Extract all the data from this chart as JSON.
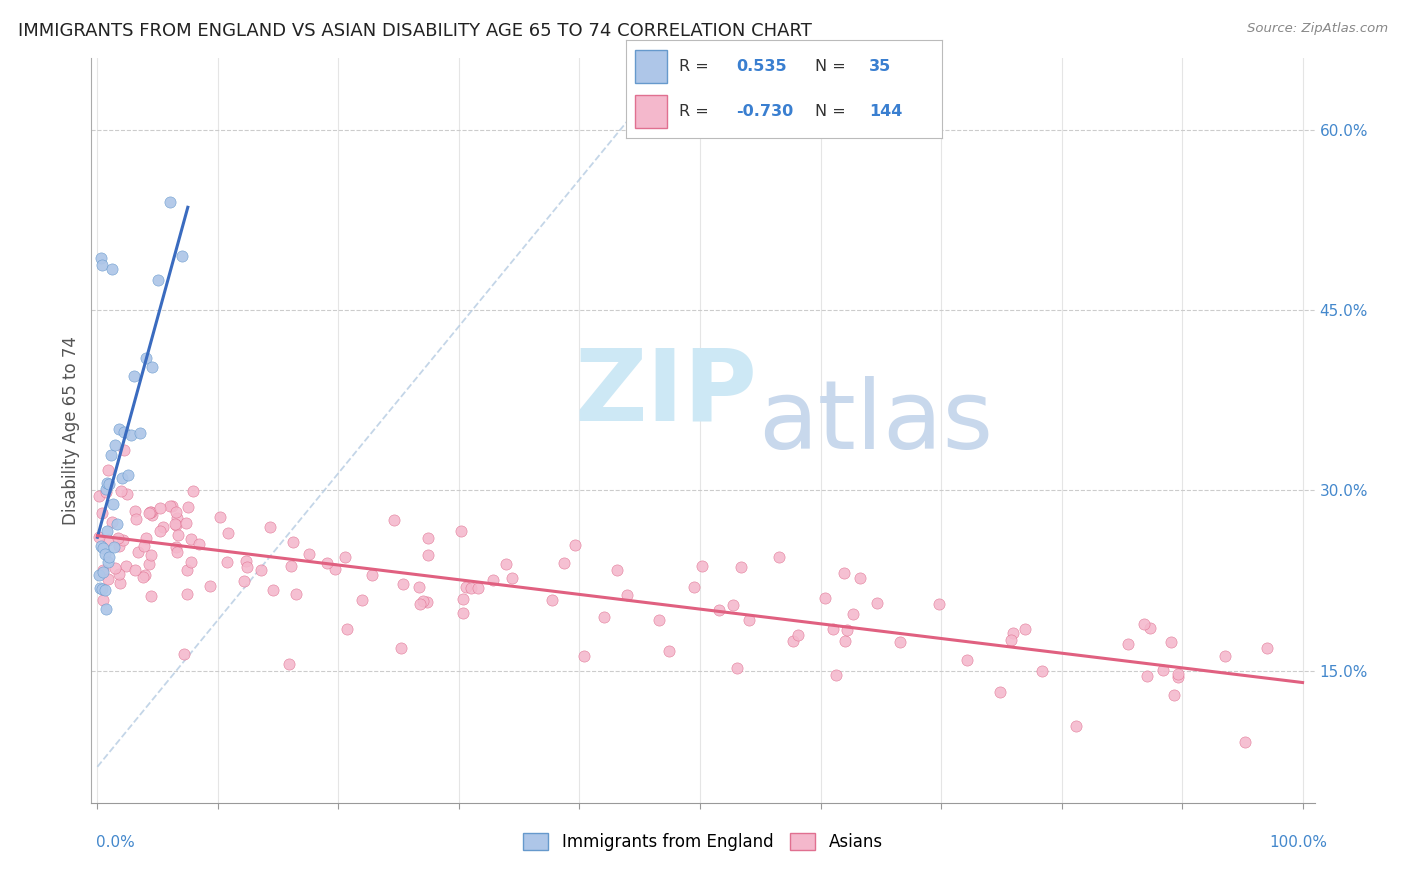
{
  "title": "IMMIGRANTS FROM ENGLAND VS ASIAN DISABILITY AGE 65 TO 74 CORRELATION CHART",
  "source": "Source: ZipAtlas.com",
  "ylabel": "Disability Age 65 to 74",
  "y_ticks": [
    0.15,
    0.3,
    0.45,
    0.6
  ],
  "y_tick_labels": [
    "15.0%",
    "30.0%",
    "45.0%",
    "60.0%"
  ],
  "color_england": "#aec6e8",
  "color_england_edge": "#6699cc",
  "color_asian": "#f4b8cc",
  "color_asian_edge": "#e07090",
  "color_england_line": "#3a6bbf",
  "color_asian_line": "#e06080",
  "color_diag_dash": "#b0c8e0",
  "watermark_zip_color": "#cde8f5",
  "watermark_atlas_color": "#c8d8ec",
  "legend_r1_val": "0.535",
  "legend_n1_val": "35",
  "legend_r2_val": "-0.730",
  "legend_n2_val": "144",
  "background_color": "#ffffff",
  "xlim": [
    -0.005,
    1.01
  ],
  "ylim": [
    0.04,
    0.66
  ]
}
